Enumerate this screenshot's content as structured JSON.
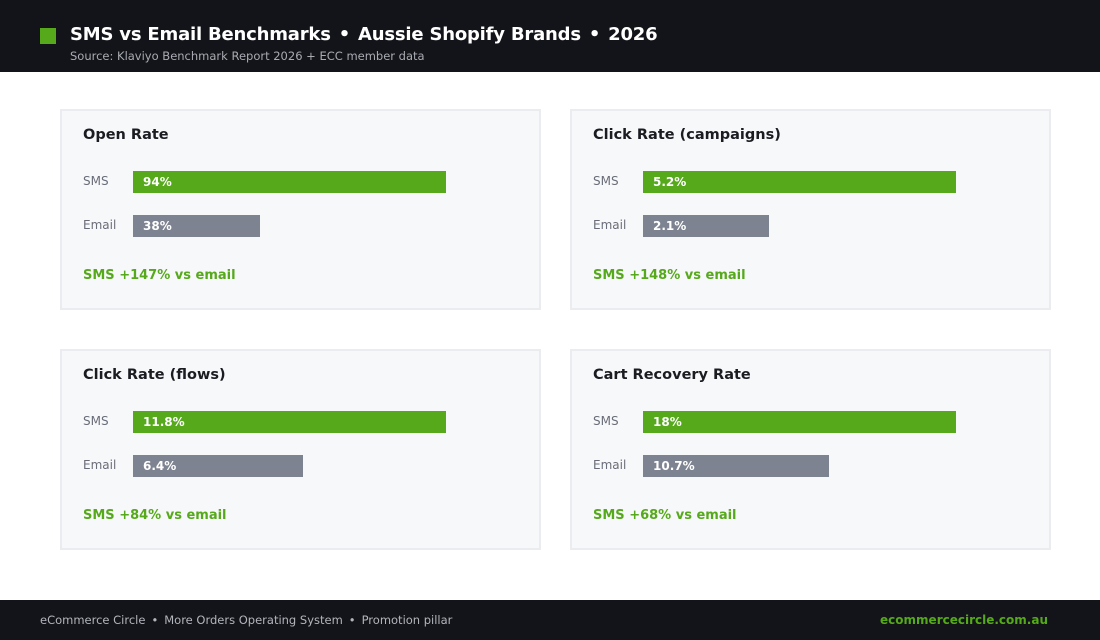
{
  "header": {
    "title_parts": [
      "SMS vs Email Benchmarks",
      "Aussie Shopify Brands",
      "2026"
    ],
    "separator": "•",
    "subtitle": "Source: Klaviyo Benchmark Report 2026 + ECC member data"
  },
  "colors": {
    "sms": "#55a91a",
    "email": "#7e8392",
    "header_bg": "#131419",
    "card_bg": "#f7f8fa"
  },
  "chart_data": [
    {
      "type": "bar",
      "title": "Open Rate",
      "categories": [
        "SMS",
        "Email"
      ],
      "values": [
        94,
        38
      ],
      "value_labels": [
        "94%",
        "38%"
      ],
      "unit": "%",
      "note": "SMS +147% vs email"
    },
    {
      "type": "bar",
      "title": "Click Rate (campaigns)",
      "categories": [
        "SMS",
        "Email"
      ],
      "values": [
        5.2,
        2.1
      ],
      "value_labels": [
        "5.2%",
        "2.1%"
      ],
      "unit": "%",
      "note": "SMS +148% vs email"
    },
    {
      "type": "bar",
      "title": "Click Rate (flows)",
      "categories": [
        "SMS",
        "Email"
      ],
      "values": [
        11.8,
        6.4
      ],
      "value_labels": [
        "11.8%",
        "6.4%"
      ],
      "unit": "%",
      "note": "SMS +84% vs email"
    },
    {
      "type": "bar",
      "title": "Cart Recovery Rate",
      "categories": [
        "SMS",
        "Email"
      ],
      "values": [
        18,
        10.7
      ],
      "value_labels": [
        "18%",
        "10.7%"
      ],
      "unit": "%",
      "note": "SMS +68% vs email"
    }
  ],
  "footer": {
    "items": [
      "eCommerce Circle",
      "More Orders Operating System",
      "Promotion pillar"
    ],
    "separator": "•",
    "url": "ecommercecircle.com.au"
  }
}
